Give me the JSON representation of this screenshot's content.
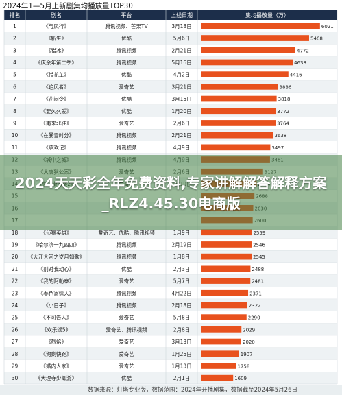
{
  "title": "2024年1—5月上新剧集均播放量TOP30",
  "overlay_text": "2024天天彩全年免费资料,专家讲解解答解释方案_RLZ4.45.30电商版",
  "footer_text": "数据来源：灯塔专业版，数据范围：2024年开播剧集，数据截至2024年5月26日",
  "colors": {
    "bar": "#e8511d",
    "header_bg": "#1c2e4a",
    "row_odd": "#ffffff",
    "row_even": "#eef2f4",
    "grid": "#cdd5da",
    "overlay": "#4c8f4c"
  },
  "chart_data": {
    "type": "table",
    "columns": [
      "排名",
      "剧名",
      "平台",
      "上线日期",
      "集均播放量（万）"
    ],
    "xlim": [
      0,
      6200
    ],
    "rows": [
      {
        "rank": "1",
        "name": "《与凤行》",
        "platform": "腾讯视频、芒果TV",
        "date": "3月18日",
        "value": 6021
      },
      {
        "rank": "2",
        "name": "《新生》",
        "platform": "优酷",
        "date": "5月6日",
        "value": 5468
      },
      {
        "rank": "3",
        "name": "《猎冰》",
        "platform": "腾讯视频",
        "date": "2月21日",
        "value": 4772
      },
      {
        "rank": "4",
        "name": "《庆余年第二季》",
        "platform": "腾讯视频",
        "date": "5月16日",
        "value": 4638
      },
      {
        "rank": "5",
        "name": "《惜花芷》",
        "platform": "优酷",
        "date": "4月2日",
        "value": 4416
      },
      {
        "rank": "6",
        "name": "《追风者》",
        "platform": "爱奇艺",
        "date": "3月21日",
        "value": 3886
      },
      {
        "rank": "7",
        "name": "《花间令》",
        "platform": "优酷",
        "date": "3月15日",
        "value": 3818
      },
      {
        "rank": "8",
        "name": "《要久久爱》",
        "platform": "优酷",
        "date": "1月20日",
        "value": 3772
      },
      {
        "rank": "9",
        "name": "《南来北往》",
        "platform": "爱奇艺",
        "date": "2月6日",
        "value": 3764
      },
      {
        "rank": "10",
        "name": "《在暴雪时分》",
        "platform": "腾讯视频",
        "date": "2月21日",
        "value": 3638
      },
      {
        "rank": "11",
        "name": "《承欢记》",
        "platform": "腾讯视频",
        "date": "4月9日",
        "value": 3497
      },
      {
        "rank": "12",
        "name": "《城中之城》",
        "platform": "腾讯视频",
        "date": "4月9日",
        "value": 3481
      },
      {
        "rank": "13",
        "name": "《大唐狄公案》",
        "platform": "爱奇艺",
        "date": "2月6日",
        "value": 3127
      },
      {
        "rank": "14",
        "name": "《唐人街探案2》",
        "platform": "爱奇艺",
        "date": "1月19日",
        "value": 2804
      },
      {
        "rank": "15",
        "name": "",
        "platform": "",
        "date": "",
        "value": 2688
      },
      {
        "rank": "16",
        "name": "",
        "platform": "",
        "date": "",
        "value": 2630
      },
      {
        "rank": "17",
        "name": "",
        "platform": "",
        "date": "",
        "value": 2600
      },
      {
        "rank": "18",
        "name": "《侦察英雄》",
        "platform": "爱奇艺、优酷、腾讯视频",
        "date": "1月9日",
        "value": 2559
      },
      {
        "rank": "19",
        "name": "《哈尔滨一九四四》",
        "platform": "腾讯视频",
        "date": "2月19日",
        "value": 2546
      },
      {
        "rank": "20",
        "name": "《大江大河之岁月如歌》",
        "platform": "腾讯视频",
        "date": "1月8日",
        "value": 2545
      },
      {
        "rank": "21",
        "name": "《别对我动心》",
        "platform": "优酷",
        "date": "2月3日",
        "value": 2488
      },
      {
        "rank": "22",
        "name": "《我的阿勒泰》",
        "platform": "爱奇艺",
        "date": "5月7日",
        "value": 2481
      },
      {
        "rank": "23",
        "name": "《春色寄情人》",
        "platform": "腾讯视频",
        "date": "4月22日",
        "value": 2371
      },
      {
        "rank": "24",
        "name": "《小日子》",
        "platform": "腾讯视频",
        "date": "2月18日",
        "value": 2322
      },
      {
        "rank": "25",
        "name": "《不可告人》",
        "platform": "爱奇艺",
        "date": "5月8日",
        "value": 2290
      },
      {
        "rank": "26",
        "name": "《欢乐颂5》",
        "platform": "爱奇艺、腾讯视频",
        "date": "2月8日",
        "value": 2029
      },
      {
        "rank": "27",
        "name": "《烈焰》",
        "platform": "爱奇艺",
        "date": "3月13日",
        "value": 2020
      },
      {
        "rank": "28",
        "name": "《狗剩快跑》",
        "platform": "爱奇艺",
        "date": "1月25日",
        "value": 1907
      },
      {
        "rank": "29",
        "name": "《婚内人家》",
        "platform": "爱奇艺",
        "date": "1月13日",
        "value": 1758
      },
      {
        "rank": "30",
        "name": "《大理寺少卿游》",
        "platform": "优酷",
        "date": "2月1日",
        "value": 1609
      }
    ]
  }
}
